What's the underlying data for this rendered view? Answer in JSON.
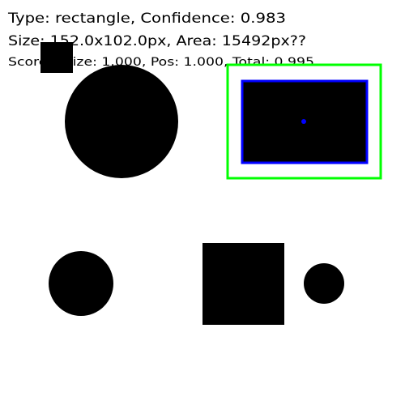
{
  "annotation": {
    "lines": [
      "Type: rectangle, Confidence: 0.983",
      "Size: 152.0x102.0px, Area: 15492px??",
      "Scores: Size: 1.000, Pos: 1.000, Total: 0.995"
    ]
  }
}
